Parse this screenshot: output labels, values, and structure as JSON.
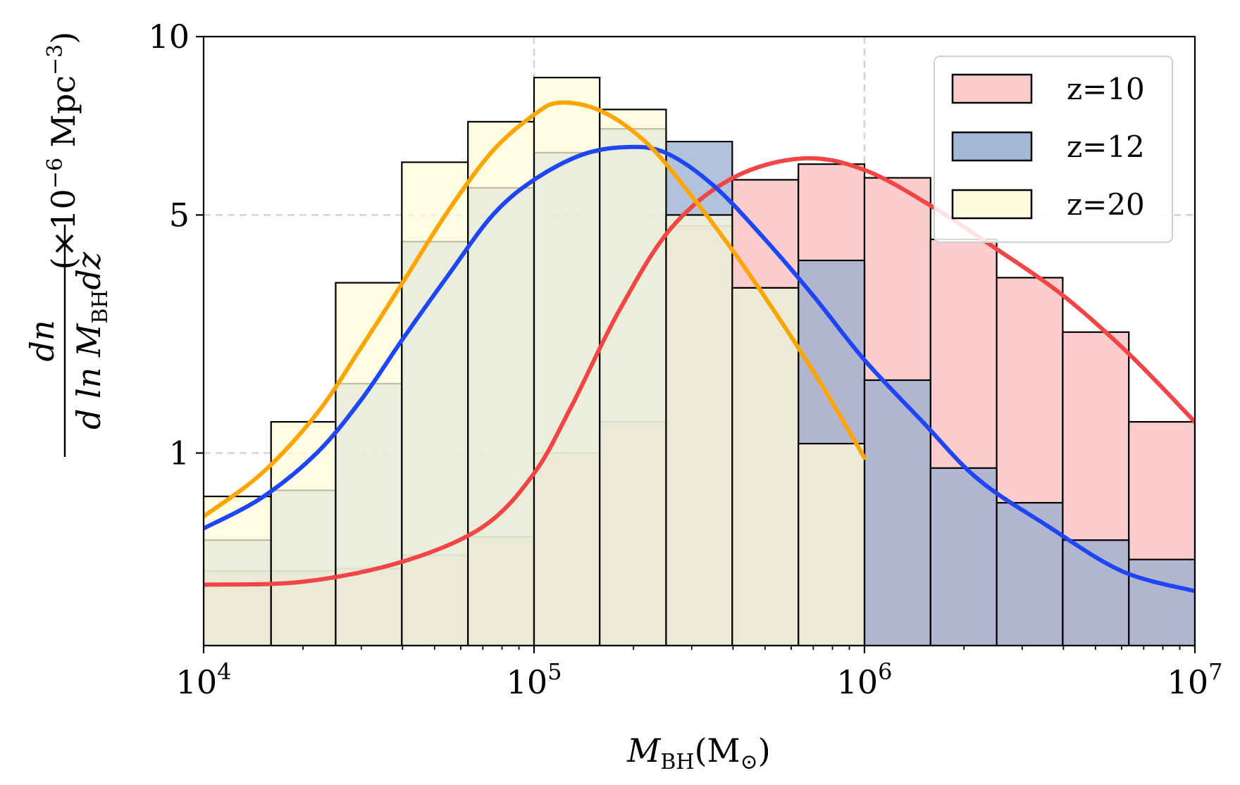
{
  "chart_data": {
    "type": "bar",
    "xscale": "log",
    "xlim": [
      10000,
      10000000
    ],
    "ylim": [
      0,
      10
    ],
    "y_display_transform": "sqrt",
    "grid": true,
    "legend_placement": "top-right",
    "xlabel": "M_BH(M_⊙)",
    "xlabel_main": "M",
    "xlabel_sub": "BH",
    "xlabel_unit": "(M",
    "xlabel_unit_sub": "⊙",
    "xlabel_unit_close": ")",
    "ylabel": "dn / d ln M_BH dz (×10^−6 Mpc^−3)",
    "ylabel_numerator": "dn",
    "ylabel_denominator": "d ln M",
    "ylabel_denominator_sub": "BH",
    "ylabel_denominator_tail": "dz",
    "ylabel_units_prefix": "(×10",
    "ylabel_units_exp": "−6",
    "ylabel_units_mid": " Mpc",
    "ylabel_units_exp2": "−3",
    "ylabel_units_close": ")",
    "x_ticks": [
      {
        "value": 10000,
        "base": "10",
        "exp": "4"
      },
      {
        "value": 100000,
        "base": "10",
        "exp": "5"
      },
      {
        "value": 1000000,
        "base": "10",
        "exp": "6"
      },
      {
        "value": 10000000,
        "base": "10",
        "exp": "7"
      }
    ],
    "y_ticks": [
      {
        "value": 1,
        "label": "1"
      },
      {
        "value": 5,
        "label": "5"
      },
      {
        "value": 10,
        "label": "10"
      }
    ],
    "x_grid": [
      100000,
      1000000
    ],
    "y_grid": [
      1,
      5
    ],
    "series": [
      {
        "name": "z=10",
        "color": "#f24545",
        "fill": "#fbcccd",
        "bins": [
          [
            10000,
            16000,
            0.15
          ],
          [
            16000,
            25100,
            0.15
          ],
          [
            25100,
            39800,
            0.16
          ],
          [
            39800,
            63100,
            0.22
          ],
          [
            63100,
            100000,
            0.32
          ],
          [
            100000,
            158000,
            1.0
          ],
          [
            158000,
            251000,
            1.35
          ],
          [
            251000,
            398000,
            4.75
          ],
          [
            398000,
            631000,
            5.85
          ],
          [
            631000,
            1000000,
            6.25
          ],
          [
            1000000,
            1585000,
            5.9
          ],
          [
            1585000,
            2512000,
            4.45
          ],
          [
            2512000,
            3981000,
            3.65
          ],
          [
            3981000,
            6310000,
            2.65
          ],
          [
            6310000,
            10000000,
            1.35
          ]
        ],
        "curve": [
          [
            10000,
            0.1
          ],
          [
            20000,
            0.11
          ],
          [
            40000,
            0.19
          ],
          [
            70000,
            0.38
          ],
          [
            100000,
            0.8
          ],
          [
            130000,
            1.55
          ],
          [
            180000,
            3.0
          ],
          [
            260000,
            4.7
          ],
          [
            400000,
            5.9
          ],
          [
            650000,
            6.4
          ],
          [
            1000000,
            6.1
          ],
          [
            1600000,
            5.2
          ],
          [
            2500000,
            4.25
          ],
          [
            4000000,
            3.3
          ],
          [
            6300000,
            2.3
          ],
          [
            10000000,
            1.35
          ]
        ]
      },
      {
        "name": "z=12",
        "color": "#1e46f5",
        "fill": "#9aaed0",
        "bins": [
          [
            10000,
            16000,
            0.3
          ],
          [
            16000,
            25100,
            0.65
          ],
          [
            25100,
            39800,
            1.85
          ],
          [
            39800,
            63100,
            4.4
          ],
          [
            63100,
            100000,
            5.65
          ],
          [
            100000,
            158000,
            6.55
          ],
          [
            158000,
            251000,
            7.2
          ],
          [
            251000,
            398000,
            6.85
          ],
          [
            398000,
            631000,
            3.45
          ],
          [
            631000,
            1000000,
            4.0
          ],
          [
            1000000,
            1585000,
            1.9
          ],
          [
            1585000,
            2512000,
            0.85
          ],
          [
            2512000,
            3981000,
            0.55
          ],
          [
            3981000,
            6310000,
            0.3
          ],
          [
            6310000,
            10000000,
            0.2
          ]
        ],
        "curve": [
          [
            10000,
            0.37
          ],
          [
            15000,
            0.59
          ],
          [
            22000,
            1.0
          ],
          [
            30000,
            1.63
          ],
          [
            40000,
            2.53
          ],
          [
            55000,
            3.7
          ],
          [
            75000,
            5.0
          ],
          [
            100000,
            5.85
          ],
          [
            140000,
            6.5
          ],
          [
            190000,
            6.7
          ],
          [
            250000,
            6.55
          ],
          [
            350000,
            5.7
          ],
          [
            500000,
            4.45
          ],
          [
            700000,
            3.3
          ],
          [
            1000000,
            2.2
          ],
          [
            1500000,
            1.35
          ],
          [
            2200000,
            0.75
          ],
          [
            3500000,
            0.4
          ],
          [
            6000000,
            0.15
          ],
          [
            10000000,
            0.08
          ]
        ]
      },
      {
        "name": "z=20",
        "color": "#ffa500",
        "fill": "#fdfcda",
        "bins": [
          [
            10000,
            16000,
            0.6
          ],
          [
            16000,
            25100,
            1.35
          ],
          [
            25100,
            39800,
            3.55
          ],
          [
            39800,
            63100,
            6.3
          ],
          [
            63100,
            100000,
            7.4
          ],
          [
            100000,
            158000,
            8.7
          ],
          [
            158000,
            251000,
            7.75
          ],
          [
            251000,
            398000,
            5.0
          ],
          [
            398000,
            631000,
            3.45
          ],
          [
            631000,
            1000000,
            1.1
          ]
        ],
        "curve": [
          [
            10000,
            0.45
          ],
          [
            15000,
            0.8
          ],
          [
            22000,
            1.45
          ],
          [
            30000,
            2.4
          ],
          [
            40000,
            3.55
          ],
          [
            55000,
            5.1
          ],
          [
            75000,
            6.6
          ],
          [
            100000,
            7.6
          ],
          [
            120000,
            7.95
          ],
          [
            160000,
            7.7
          ],
          [
            220000,
            6.8
          ],
          [
            300000,
            5.45
          ],
          [
            400000,
            4.2
          ],
          [
            550000,
            2.9
          ],
          [
            750000,
            1.8
          ],
          [
            1000000,
            0.95
          ]
        ]
      }
    ]
  }
}
